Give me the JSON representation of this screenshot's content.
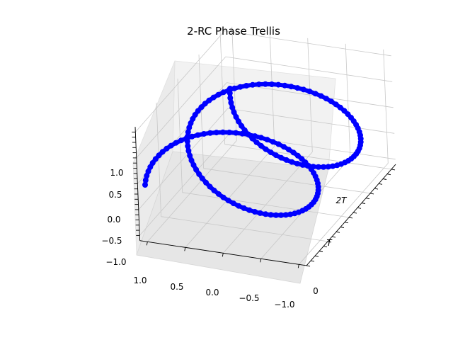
{
  "chart_data": {
    "type": "line3d",
    "title": "2-RC Phase Trellis",
    "xlabel": "",
    "ylabel": "",
    "zlabel": "",
    "x_ticks": [
      "1.0",
      "0.5",
      "0.0",
      "−0.5",
      "−1.0"
    ],
    "y_ticks": [
      "0",
      "T",
      "2T"
    ],
    "z_ticks": [
      "1.0",
      "0.5",
      "0.0",
      "−0.5",
      "−1.0"
    ],
    "xlim": [
      -1.1,
      1.1
    ],
    "ylim": [
      0,
      2.1
    ],
    "zlim": [
      -1.1,
      1.1
    ],
    "grid": true,
    "marker": "circle",
    "series_color": "#0000ff",
    "series": [
      {
        "label_ref": "unit circle at t = 0 to T",
        "t_range": [
          0,
          1
        ]
      },
      {
        "label_ref": "unit circle at t = T to 2T",
        "t_range": [
          1,
          2
        ]
      }
    ]
  }
}
